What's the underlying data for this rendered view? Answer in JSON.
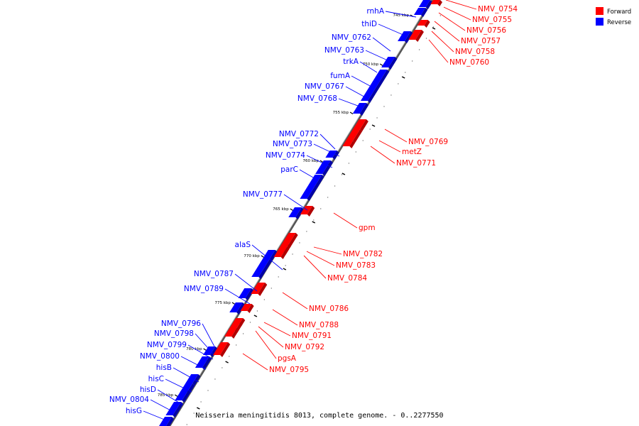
{
  "legend": {
    "forward": {
      "label": "Forward",
      "color": "#ff0000"
    },
    "reverse": {
      "label": "Reverse",
      "color": "#0000ff"
    }
  },
  "caption": "Neisseria meningitidis 8013, complete genome. - 0..2277550",
  "ticks": [
    "745 kbp",
    "750 kbp",
    "755 kbp",
    "760 kbp",
    "765 kbp",
    "770 kbp",
    "775 kbp",
    "780 kbp",
    "785 kbp"
  ],
  "reverse_genes": [
    "rnhA",
    "thiD",
    "NMV_0762",
    "NMV_0763",
    "trkA",
    "fumA",
    "NMV_0767",
    "NMV_0768",
    "NMV_0772",
    "NMV_0773",
    "NMV_0774",
    "parC",
    "NMV_0777",
    "alaS",
    "NMV_0787",
    "NMV_0789",
    "NMV_0796",
    "NMV_0798",
    "NMV_0799",
    "NMV_0800",
    "hisB",
    "hisC",
    "hisD",
    "NMV_0804",
    "hisG"
  ],
  "forward_genes": [
    "NMV_0754",
    "NMV_0755",
    "NMV_0756",
    "NMV_0757",
    "NMV_0758",
    "NMV_0760",
    "NMV_0769",
    "metZ",
    "NMV_0771",
    "gpm",
    "NMV_0782",
    "NMV_0783",
    "NMV_0784",
    "NMV_0786",
    "NMV_0788",
    "NMV_0791",
    "NMV_0792",
    "pgsA",
    "NMV_0795"
  ]
}
